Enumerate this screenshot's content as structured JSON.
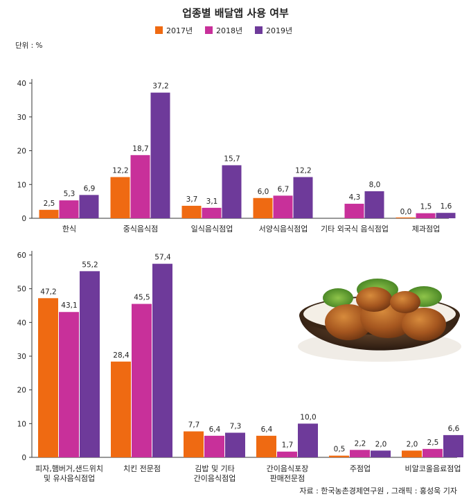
{
  "title": "업종별 배달앱 사용 여부",
  "unit_label": "단위 : %",
  "source": "자료 : 한국농촌경제연구원 , 그래픽 : 홍성욱 기자",
  "colors": {
    "2017년": "#ef6a12",
    "2018년": "#c8309a",
    "2019년": "#6e3a9a"
  },
  "illustration": "fried-chicken-basket",
  "chart_data": [
    {
      "type": "bar",
      "ylim": [
        0,
        40
      ],
      "yticks": [
        0,
        10,
        20,
        30,
        40
      ],
      "categories": [
        [
          "한식"
        ],
        [
          "중식음식점"
        ],
        [
          "일식음식점업"
        ],
        [
          "서양식음식점업"
        ],
        [
          "기타 외국식 음식점업"
        ],
        [
          "제과점업"
        ]
      ],
      "series": [
        {
          "name": "2017년",
          "values": [
            2.5,
            12.2,
            3.7,
            6.0,
            null,
            0.0
          ],
          "labels": [
            "2,5",
            "12,2",
            "3,7",
            "6,0",
            "",
            "0,0"
          ]
        },
        {
          "name": "2018년",
          "values": [
            5.3,
            18.7,
            3.1,
            6.7,
            4.3,
            1.5
          ],
          "labels": [
            "5,3",
            "18,7",
            "3,1",
            "6,7",
            "4,3",
            "1,5"
          ]
        },
        {
          "name": "2019년",
          "values": [
            6.9,
            37.2,
            15.7,
            12.2,
            8.0,
            1.6
          ],
          "labels": [
            "6,9",
            "37,2",
            "15,7",
            "12,2",
            "8,0",
            "1,6"
          ]
        }
      ]
    },
    {
      "type": "bar",
      "ylim": [
        0,
        60
      ],
      "yticks": [
        0,
        10,
        20,
        30,
        40,
        50,
        60
      ],
      "categories": [
        [
          "피자,햄버거,샌드위치",
          "및 유사음식점업"
        ],
        [
          "치킨 전문점"
        ],
        [
          "김밥 및 기타",
          "간이음식점업"
        ],
        [
          "간이음식포장",
          "판매전문점"
        ],
        [
          "주점업"
        ],
        [
          "비알코올음료점업"
        ]
      ],
      "series": [
        {
          "name": "2017년",
          "values": [
            47.2,
            28.4,
            7.7,
            6.4,
            0.5,
            2.0
          ],
          "labels": [
            "47,2",
            "28,4",
            "7,7",
            "6,4",
            "0,5",
            "2,0"
          ]
        },
        {
          "name": "2018년",
          "values": [
            43.1,
            45.5,
            6.4,
            1.7,
            2.2,
            2.5
          ],
          "labels": [
            "43,1",
            "45,5",
            "6,4",
            "1,7",
            "2,2",
            "2,5"
          ]
        },
        {
          "name": "2019년",
          "values": [
            55.2,
            57.4,
            7.3,
            10.0,
            2.0,
            6.6
          ],
          "labels": [
            "55,2",
            "57,4",
            "7,3",
            "10,0",
            "2,0",
            "6,6"
          ]
        }
      ]
    }
  ]
}
